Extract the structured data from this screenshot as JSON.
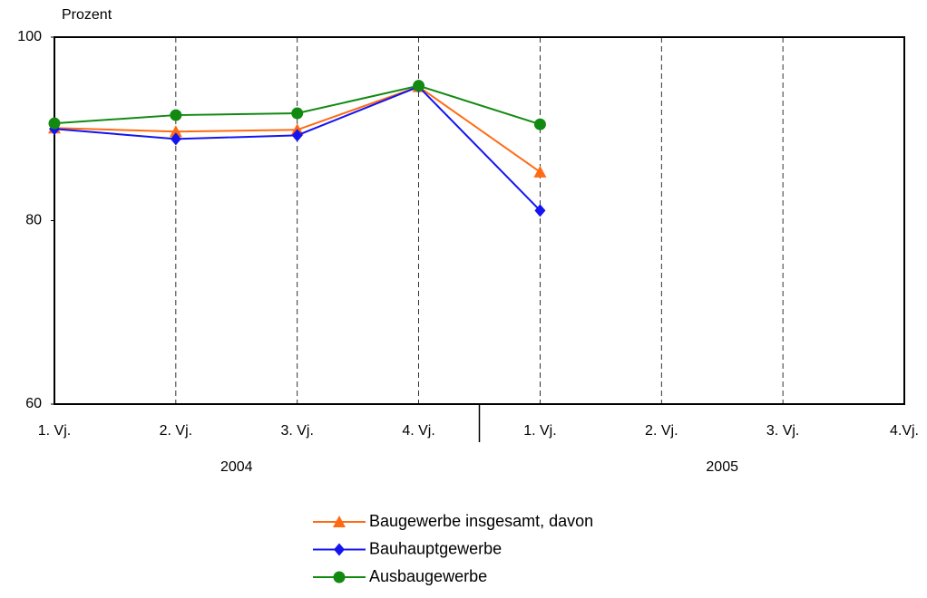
{
  "chart_data": {
    "type": "line",
    "y_label": "Prozent",
    "categories": [
      "1. Vj.",
      "2. Vj.",
      "3. Vj.",
      "4. Vj.",
      "1. Vj.",
      "2. Vj.",
      "3. Vj.",
      "4.Vj."
    ],
    "x_groups": [
      "2004",
      "2005"
    ],
    "series": [
      {
        "name": "Baugewerbe insgesamt, davon",
        "color": "#ff6a13",
        "marker": "triangle",
        "values": [
          90.1,
          89.7,
          89.9,
          94.6,
          85.3,
          null,
          null,
          null
        ]
      },
      {
        "name": "Bauhauptgewerbe",
        "color": "#1414f0",
        "marker": "diamond",
        "values": [
          90.0,
          88.9,
          89.3,
          94.6,
          81.1,
          null,
          null,
          null
        ]
      },
      {
        "name": "Ausbaugewerbe",
        "color": "#128a12",
        "marker": "circle",
        "values": [
          90.6,
          91.5,
          91.7,
          94.7,
          90.5,
          null,
          null,
          null
        ]
      }
    ],
    "ylim": [
      60,
      100
    ],
    "yticks": [
      60,
      80,
      100
    ],
    "grid": true
  }
}
